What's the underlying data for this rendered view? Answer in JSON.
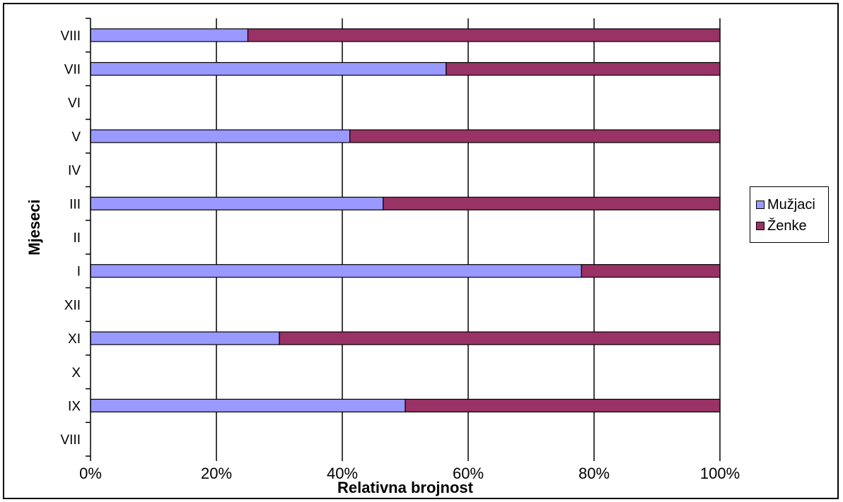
{
  "chart_data": {
    "type": "bar",
    "orientation": "horizontal",
    "stacked": "percent",
    "xlabel": "Relativna brojnost",
    "ylabel": "Mjeseci",
    "x_ticks": [
      "0%",
      "20%",
      "40%",
      "60%",
      "80%",
      "100%"
    ],
    "xlim": [
      0,
      100
    ],
    "grid": "vertical",
    "legend_position": "right",
    "categories": [
      "VIII",
      "IX",
      "X",
      "XI",
      "XII",
      "I",
      "II",
      "III",
      "IV",
      "V",
      "VI",
      "VII",
      "VIII"
    ],
    "series": [
      {
        "name": "Mužjaci",
        "color": "#9999FF",
        "values": [
          null,
          50,
          null,
          30,
          null,
          78,
          null,
          46.5,
          null,
          41.2,
          null,
          56.5,
          25
        ]
      },
      {
        "name": "Ženke",
        "color": "#993366",
        "values": [
          null,
          50,
          null,
          70,
          null,
          22,
          null,
          53.5,
          null,
          58.8,
          null,
          43.5,
          75
        ]
      }
    ]
  }
}
